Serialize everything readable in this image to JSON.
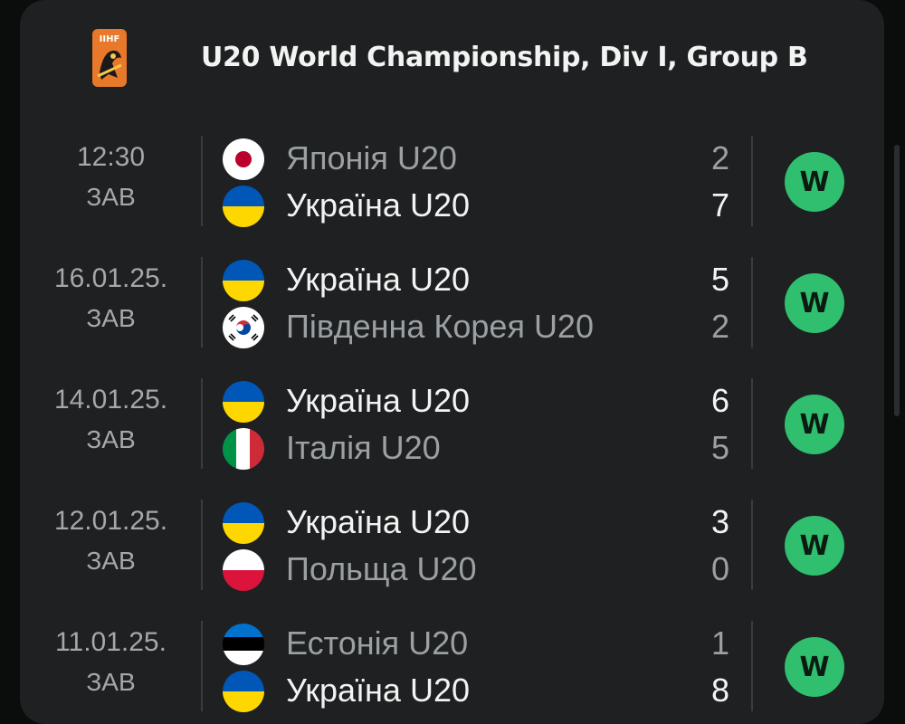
{
  "header": {
    "logo_text": "IIHF",
    "title": "U20 World Championship, Div I, Group B"
  },
  "matches": [
    {
      "date": "12:30",
      "dow": "ЗАВ",
      "home": {
        "name": "Японія U20",
        "flag": "japan",
        "score": "2",
        "winner": false
      },
      "away": {
        "name": "Україна U20",
        "flag": "ukraine",
        "score": "7",
        "winner": true
      },
      "result": "W"
    },
    {
      "date": "16.01.25.",
      "dow": "ЗАВ",
      "home": {
        "name": "Україна U20",
        "flag": "ukraine",
        "score": "5",
        "winner": true
      },
      "away": {
        "name": "Південна Корея U20",
        "flag": "south-korea",
        "score": "2",
        "winner": false
      },
      "result": "W"
    },
    {
      "date": "14.01.25.",
      "dow": "ЗАВ",
      "home": {
        "name": "Україна U20",
        "flag": "ukraine",
        "score": "6",
        "winner": true
      },
      "away": {
        "name": "Італія U20",
        "flag": "italy",
        "score": "5",
        "winner": false
      },
      "result": "W"
    },
    {
      "date": "12.01.25.",
      "dow": "ЗАВ",
      "home": {
        "name": "Україна U20",
        "flag": "ukraine",
        "score": "3",
        "winner": true
      },
      "away": {
        "name": "Польща U20",
        "flag": "poland",
        "score": "0",
        "winner": false
      },
      "result": "W"
    },
    {
      "date": "11.01.25.",
      "dow": "ЗАВ",
      "home": {
        "name": "Естонія U20",
        "flag": "estonia",
        "score": "1",
        "winner": false
      },
      "away": {
        "name": "Україна U20",
        "flag": "ukraine",
        "score": "8",
        "winner": true
      },
      "result": "W"
    }
  ],
  "colors": {
    "background": "#0b0c0c",
    "card": "#1e2021",
    "win_badge": "#2fbf6e",
    "text_primary": "#f2f3f3",
    "text_secondary": "#9aa0a3"
  }
}
